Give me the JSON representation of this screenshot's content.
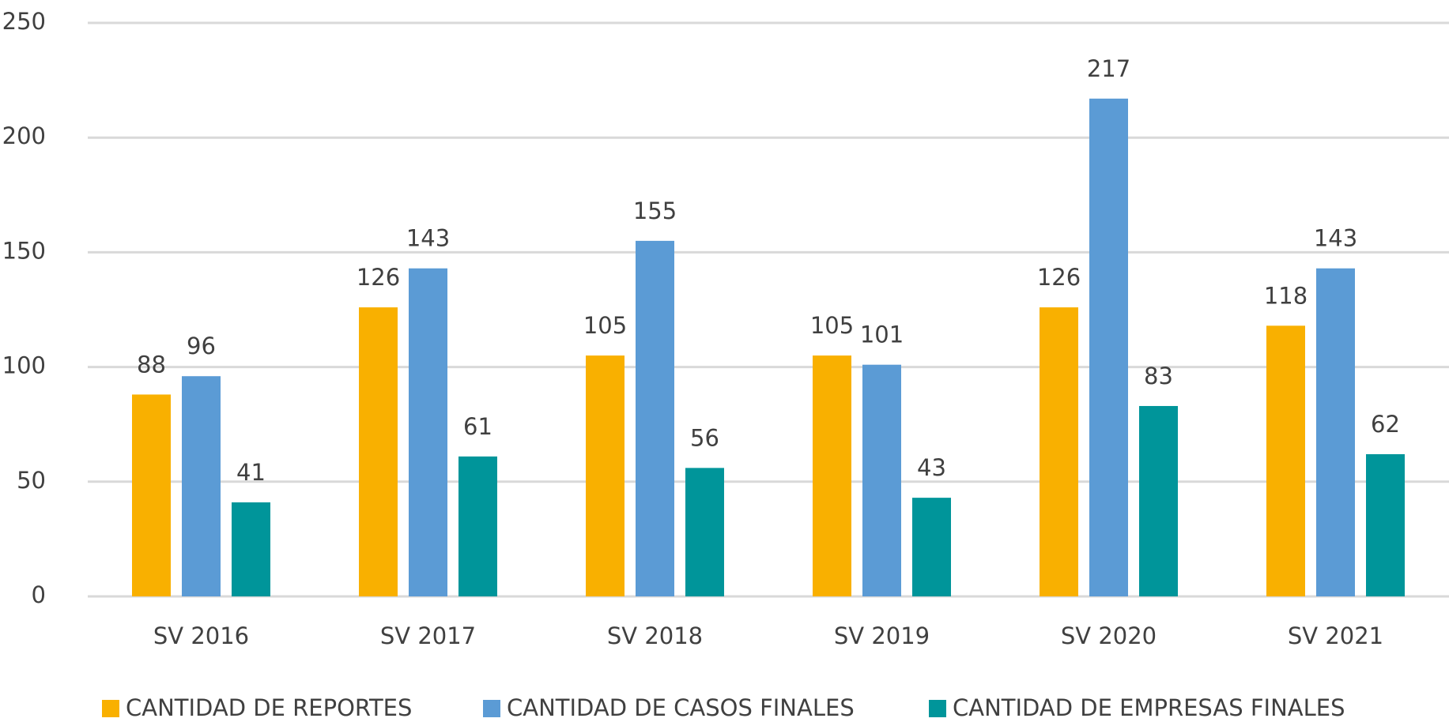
{
  "chart_data": {
    "type": "bar",
    "categories": [
      "SV 2016",
      "SV 2017",
      "SV 2018",
      "SV 2019",
      "SV 2020",
      "SV 2021"
    ],
    "series": [
      {
        "name": "CANTIDAD DE REPORTES",
        "color": "#F9B000",
        "values": [
          88,
          126,
          105,
          105,
          126,
          118
        ]
      },
      {
        "name": "CANTIDAD DE CASOS FINALES",
        "color": "#5B9BD5",
        "values": [
          96,
          143,
          155,
          101,
          217,
          143
        ]
      },
      {
        "name": "CANTIDAD DE EMPRESAS FINALES",
        "color": "#00959A",
        "values": [
          41,
          61,
          56,
          43,
          83,
          62
        ]
      }
    ],
    "ylim": [
      0,
      250
    ],
    "yticks": [
      0,
      50,
      100,
      150,
      200,
      250
    ],
    "grid": true,
    "legend": "bottom"
  }
}
